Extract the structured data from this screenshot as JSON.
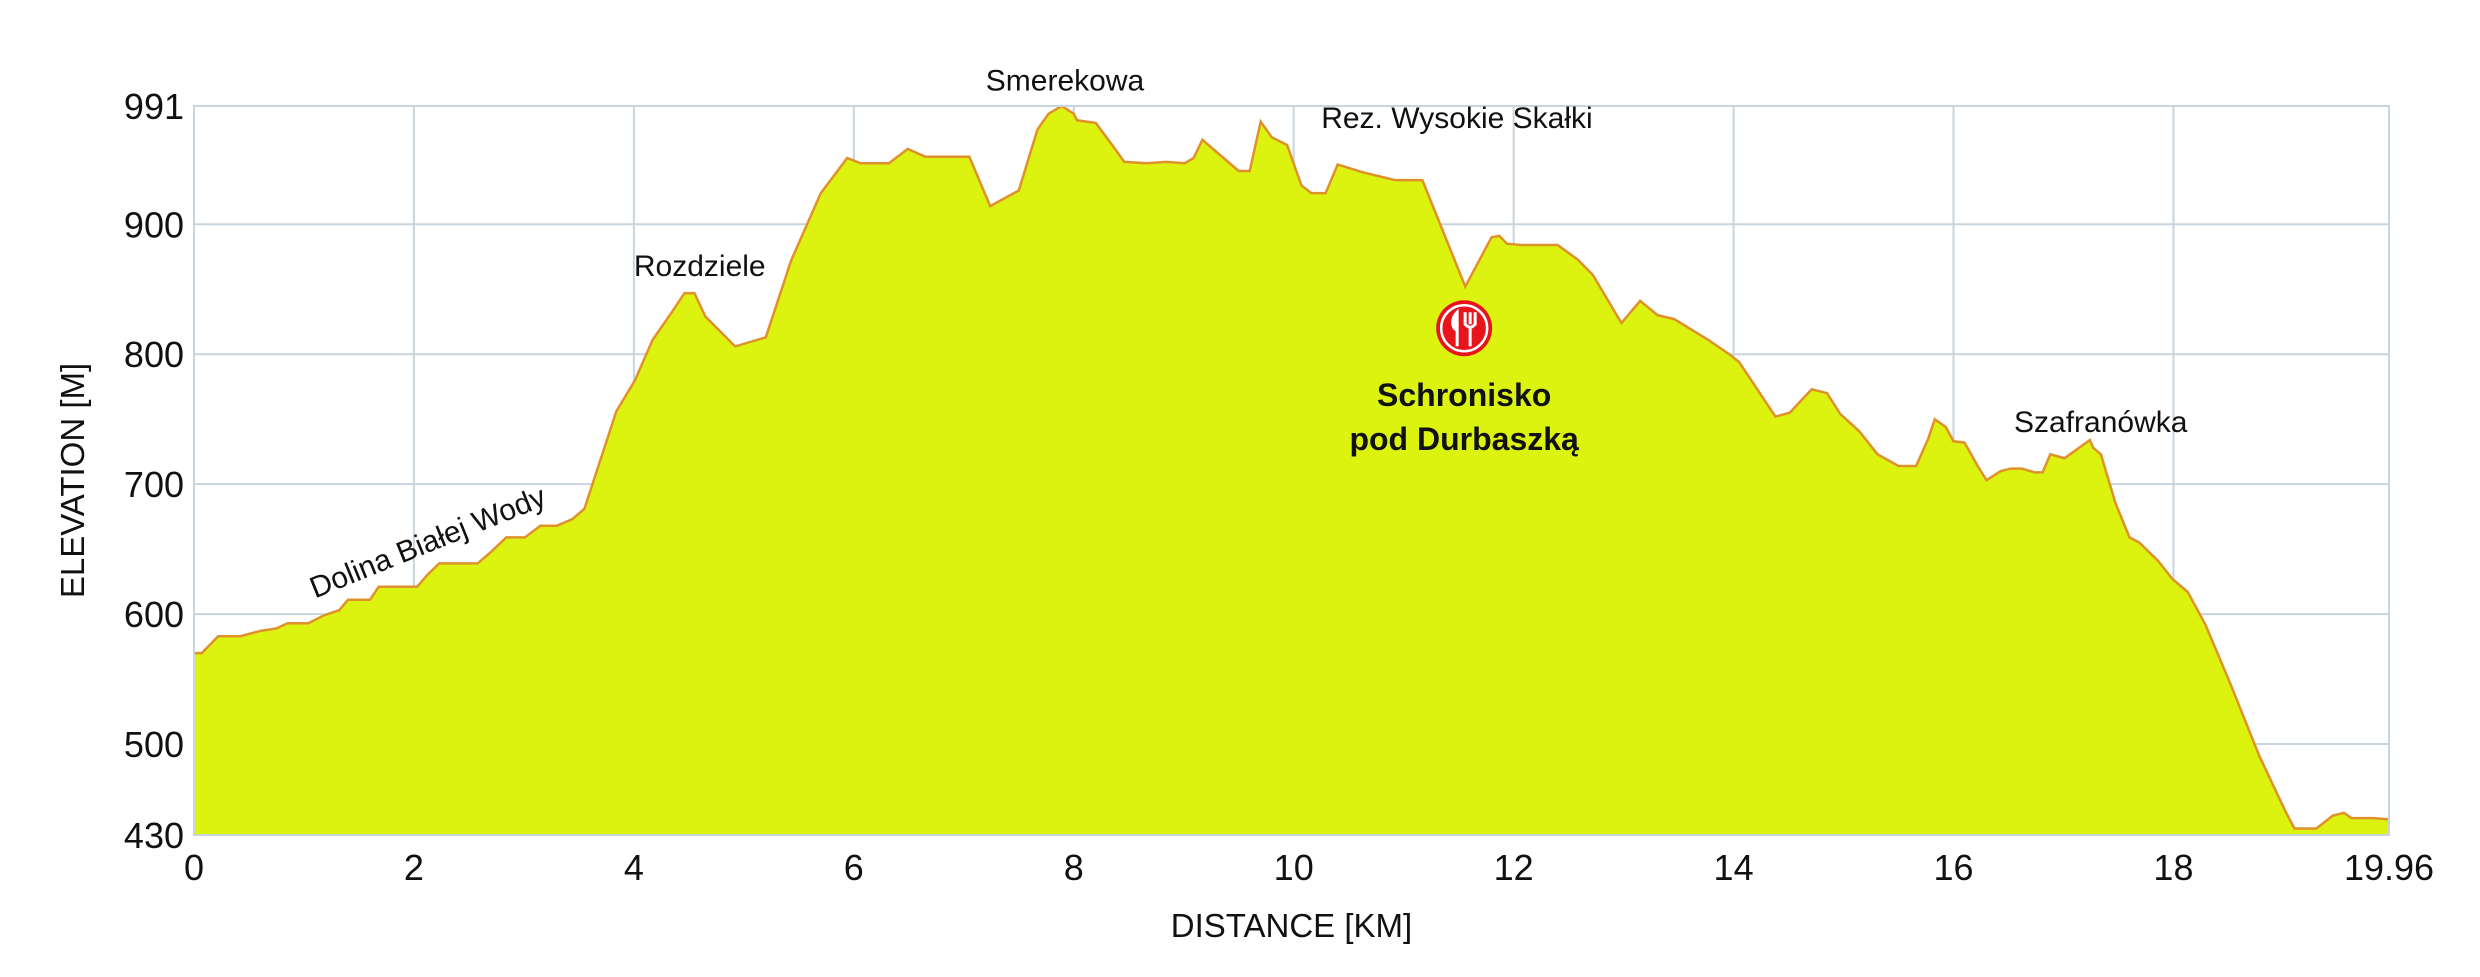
{
  "chart_data": {
    "type": "area",
    "title": "",
    "xlabel": "DISTANCE [KM]",
    "ylabel": "ELEVATION [M]",
    "xlim": [
      0,
      19.96
    ],
    "ylim": [
      430,
      991
    ],
    "grid": true,
    "x_ticks": [
      "0",
      "2",
      "4",
      "6",
      "8",
      "10",
      "12",
      "14",
      "16",
      "18",
      "19.96"
    ],
    "x_tick_values": [
      0,
      2,
      4,
      6,
      8,
      10,
      12,
      14,
      16,
      18,
      19.96
    ],
    "y_ticks": [
      "430",
      "500",
      "600",
      "700",
      "800",
      "900",
      "991"
    ],
    "y_tick_values": [
      430,
      500,
      600,
      700,
      800,
      900,
      991
    ],
    "colors": {
      "fill": "#dcf20f",
      "line": "#e0922a",
      "grid": "#c9d5de",
      "poi": "#e8141c"
    },
    "series": [
      {
        "name": "elevation",
        "x": [
          0,
          0.07,
          0.22,
          0.42,
          0.6,
          0.75,
          0.85,
          1.04,
          1.18,
          1.32,
          1.4,
          1.6,
          1.68,
          2.03,
          2.12,
          2.23,
          2.58,
          2.69,
          2.84,
          3.01,
          3.15,
          3.3,
          3.44,
          3.55,
          3.84,
          4.01,
          4.17,
          4.35,
          4.46,
          4.55,
          4.65,
          4.92,
          5.2,
          5.43,
          5.7,
          5.94,
          6.06,
          6.32,
          6.49,
          6.65,
          7.05,
          7.24,
          7.5,
          7.67,
          7.77,
          7.89,
          8.0,
          8.03,
          8.2,
          8.35,
          8.46,
          8.66,
          8.84,
          9.01,
          9.09,
          9.17,
          9.5,
          9.6,
          9.7,
          9.8,
          9.94,
          10.07,
          10.16,
          10.29,
          10.4,
          10.63,
          10.92,
          11.17,
          11.56,
          11.8,
          11.87,
          11.94,
          12.07,
          12.4,
          12.58,
          12.72,
          12.98,
          13.15,
          13.31,
          13.46,
          13.77,
          13.96,
          14.05,
          14.38,
          14.51,
          14.71,
          14.85,
          14.97,
          15.14,
          15.31,
          15.5,
          15.66,
          15.77,
          15.83,
          15.93,
          16.0,
          16.1,
          16.22,
          16.3,
          16.43,
          16.52,
          16.62,
          16.74,
          16.81,
          16.88,
          17.01,
          17.24,
          17.27,
          17.34,
          17.47,
          17.6,
          17.69,
          17.86,
          17.99,
          18.13,
          18.29,
          18.52,
          18.78,
          19.02,
          19.1,
          19.3,
          19.45,
          19.55,
          19.62,
          19.82,
          19.96
        ],
        "y": [
          570,
          570,
          583,
          583,
          587,
          589,
          593,
          593,
          599,
          603,
          611,
          611,
          621,
          621,
          630,
          639,
          639,
          647,
          659,
          659,
          668,
          668,
          673,
          681,
          756,
          780,
          811,
          833,
          847,
          847,
          829,
          806,
          813,
          872,
          924,
          951,
          947,
          947,
          958,
          952,
          952,
          914,
          926,
          973,
          985,
          991,
          985,
          980,
          978,
          961,
          948,
          947,
          948,
          947,
          951,
          965,
          941,
          941,
          979,
          967,
          961,
          930,
          924,
          924,
          946,
          940,
          934,
          934,
          852,
          890,
          891,
          885,
          884,
          884,
          873,
          861,
          824,
          841,
          830,
          827,
          811,
          800,
          794,
          752,
          755,
          773,
          770,
          754,
          741,
          723,
          714,
          714,
          735,
          750,
          744,
          733,
          732,
          714,
          703,
          710,
          712,
          712,
          709,
          709,
          723,
          720,
          734,
          728,
          723,
          686,
          659,
          655,
          641,
          627,
          617,
          592,
          546,
          491,
          448,
          435,
          435,
          445,
          447,
          443,
          443,
          442
        ]
      }
    ],
    "annotations": [
      {
        "text": "Dolina Białej Wody",
        "x": 1.1,
        "y": 612,
        "style": "rotated"
      },
      {
        "text": "Rozdziele",
        "x": 4.0,
        "y": 860,
        "style": "normal"
      },
      {
        "text": "Smerekowa",
        "x": 7.2,
        "y": 1003,
        "style": "normal"
      },
      {
        "text": "Rez. Wysokie Skałki",
        "x": 10.25,
        "y": 974,
        "style": "normal"
      },
      {
        "text": "Szafranówka",
        "x": 16.55,
        "y": 740,
        "style": "normal"
      }
    ],
    "poi": {
      "icon": "restaurant-icon",
      "x": 11.55,
      "y": 820,
      "label_line1": "Schronisko",
      "label_line2": "pod Durbaszką"
    }
  }
}
